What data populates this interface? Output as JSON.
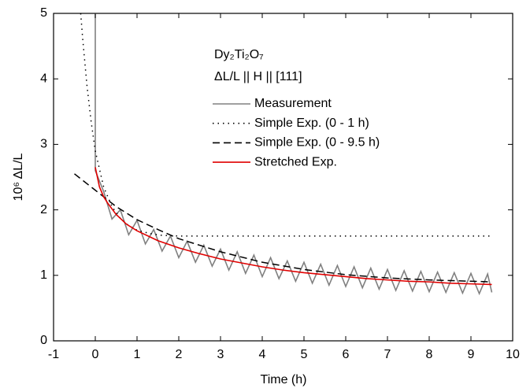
{
  "chart_data": {
    "type": "line",
    "annotations": [
      "Dy₂Ti₂O₇",
      "ΔL/L || H || [111]"
    ],
    "xlabel": "Time (h)",
    "ylabel": "10⁶ ΔL/L",
    "xlim": [
      -1,
      10
    ],
    "ylim": [
      0,
      5
    ],
    "xticks": [
      -1,
      0,
      1,
      2,
      3,
      4,
      5,
      6,
      7,
      8,
      9,
      10
    ],
    "yticks": [
      0,
      1,
      2,
      3,
      4,
      5
    ],
    "legend": "upper right",
    "series": [
      {
        "name": "Measurement",
        "color": "#808080",
        "style": "solid",
        "x": [
          0,
          0,
          0.2,
          0.4,
          0.6,
          0.8,
          1.0,
          1.2,
          1.4,
          1.6,
          1.8,
          2.0,
          2.2,
          2.4,
          2.6,
          2.8,
          3.0,
          3.2,
          3.4,
          3.6,
          3.8,
          4.0,
          4.2,
          4.4,
          4.6,
          4.8,
          5.0,
          5.2,
          5.4,
          5.6,
          5.8,
          6.0,
          6.2,
          6.4,
          6.6,
          6.8,
          7.0,
          7.2,
          7.4,
          7.6,
          7.8,
          8.0,
          8.2,
          8.4,
          8.6,
          8.8,
          9.0,
          9.2,
          9.4,
          9.5
        ],
        "values": [
          5,
          2.6,
          2.28,
          1.86,
          2.0,
          1.62,
          1.84,
          1.48,
          1.7,
          1.37,
          1.6,
          1.27,
          1.52,
          1.2,
          1.46,
          1.14,
          1.4,
          1.08,
          1.36,
          1.03,
          1.31,
          0.98,
          1.27,
          0.95,
          1.22,
          0.91,
          1.2,
          0.88,
          1.17,
          0.85,
          1.15,
          0.83,
          1.13,
          0.81,
          1.11,
          0.79,
          1.09,
          0.77,
          1.07,
          0.76,
          1.06,
          0.75,
          1.05,
          0.74,
          1.04,
          0.73,
          1.03,
          0.72,
          1.02,
          0.74
        ]
      },
      {
        "name": "Simple Exp. (0 - 1 h)",
        "color": "#000000",
        "style": "dotted",
        "x": [
          -0.35,
          -0.3,
          -0.2,
          -0.1,
          0,
          0.2,
          0.4,
          0.6,
          0.8,
          1.0,
          1.3,
          1.6,
          2.0,
          3.0,
          9.5
        ],
        "values": [
          5.0,
          4.6,
          3.9,
          3.35,
          2.9,
          2.35,
          2.05,
          1.87,
          1.76,
          1.69,
          1.64,
          1.61,
          1.6,
          1.6,
          1.6
        ]
      },
      {
        "name": "Simple Exp. (0 - 9.5 h)",
        "color": "#000000",
        "style": "dashed",
        "x": [
          -0.5,
          0,
          0.5,
          1,
          1.5,
          2,
          3,
          4,
          5,
          6,
          7,
          8,
          9,
          9.5
        ],
        "values": [
          2.55,
          2.3,
          2.05,
          1.85,
          1.7,
          1.56,
          1.36,
          1.2,
          1.09,
          1.01,
          0.96,
          0.93,
          0.91,
          0.9
        ]
      },
      {
        "name": "Stretched Exp.",
        "color": "#e00000",
        "style": "solid",
        "x": [
          0,
          0.1,
          0.2,
          0.3,
          0.5,
          0.75,
          1,
          1.5,
          2,
          2.5,
          3,
          3.5,
          4,
          4.5,
          5,
          5.5,
          6,
          6.5,
          7,
          7.5,
          8,
          8.5,
          9,
          9.5
        ],
        "values": [
          2.65,
          2.35,
          2.2,
          2.1,
          1.93,
          1.78,
          1.68,
          1.53,
          1.42,
          1.33,
          1.25,
          1.19,
          1.13,
          1.08,
          1.04,
          1.01,
          0.98,
          0.95,
          0.93,
          0.91,
          0.9,
          0.88,
          0.87,
          0.86
        ]
      }
    ]
  }
}
